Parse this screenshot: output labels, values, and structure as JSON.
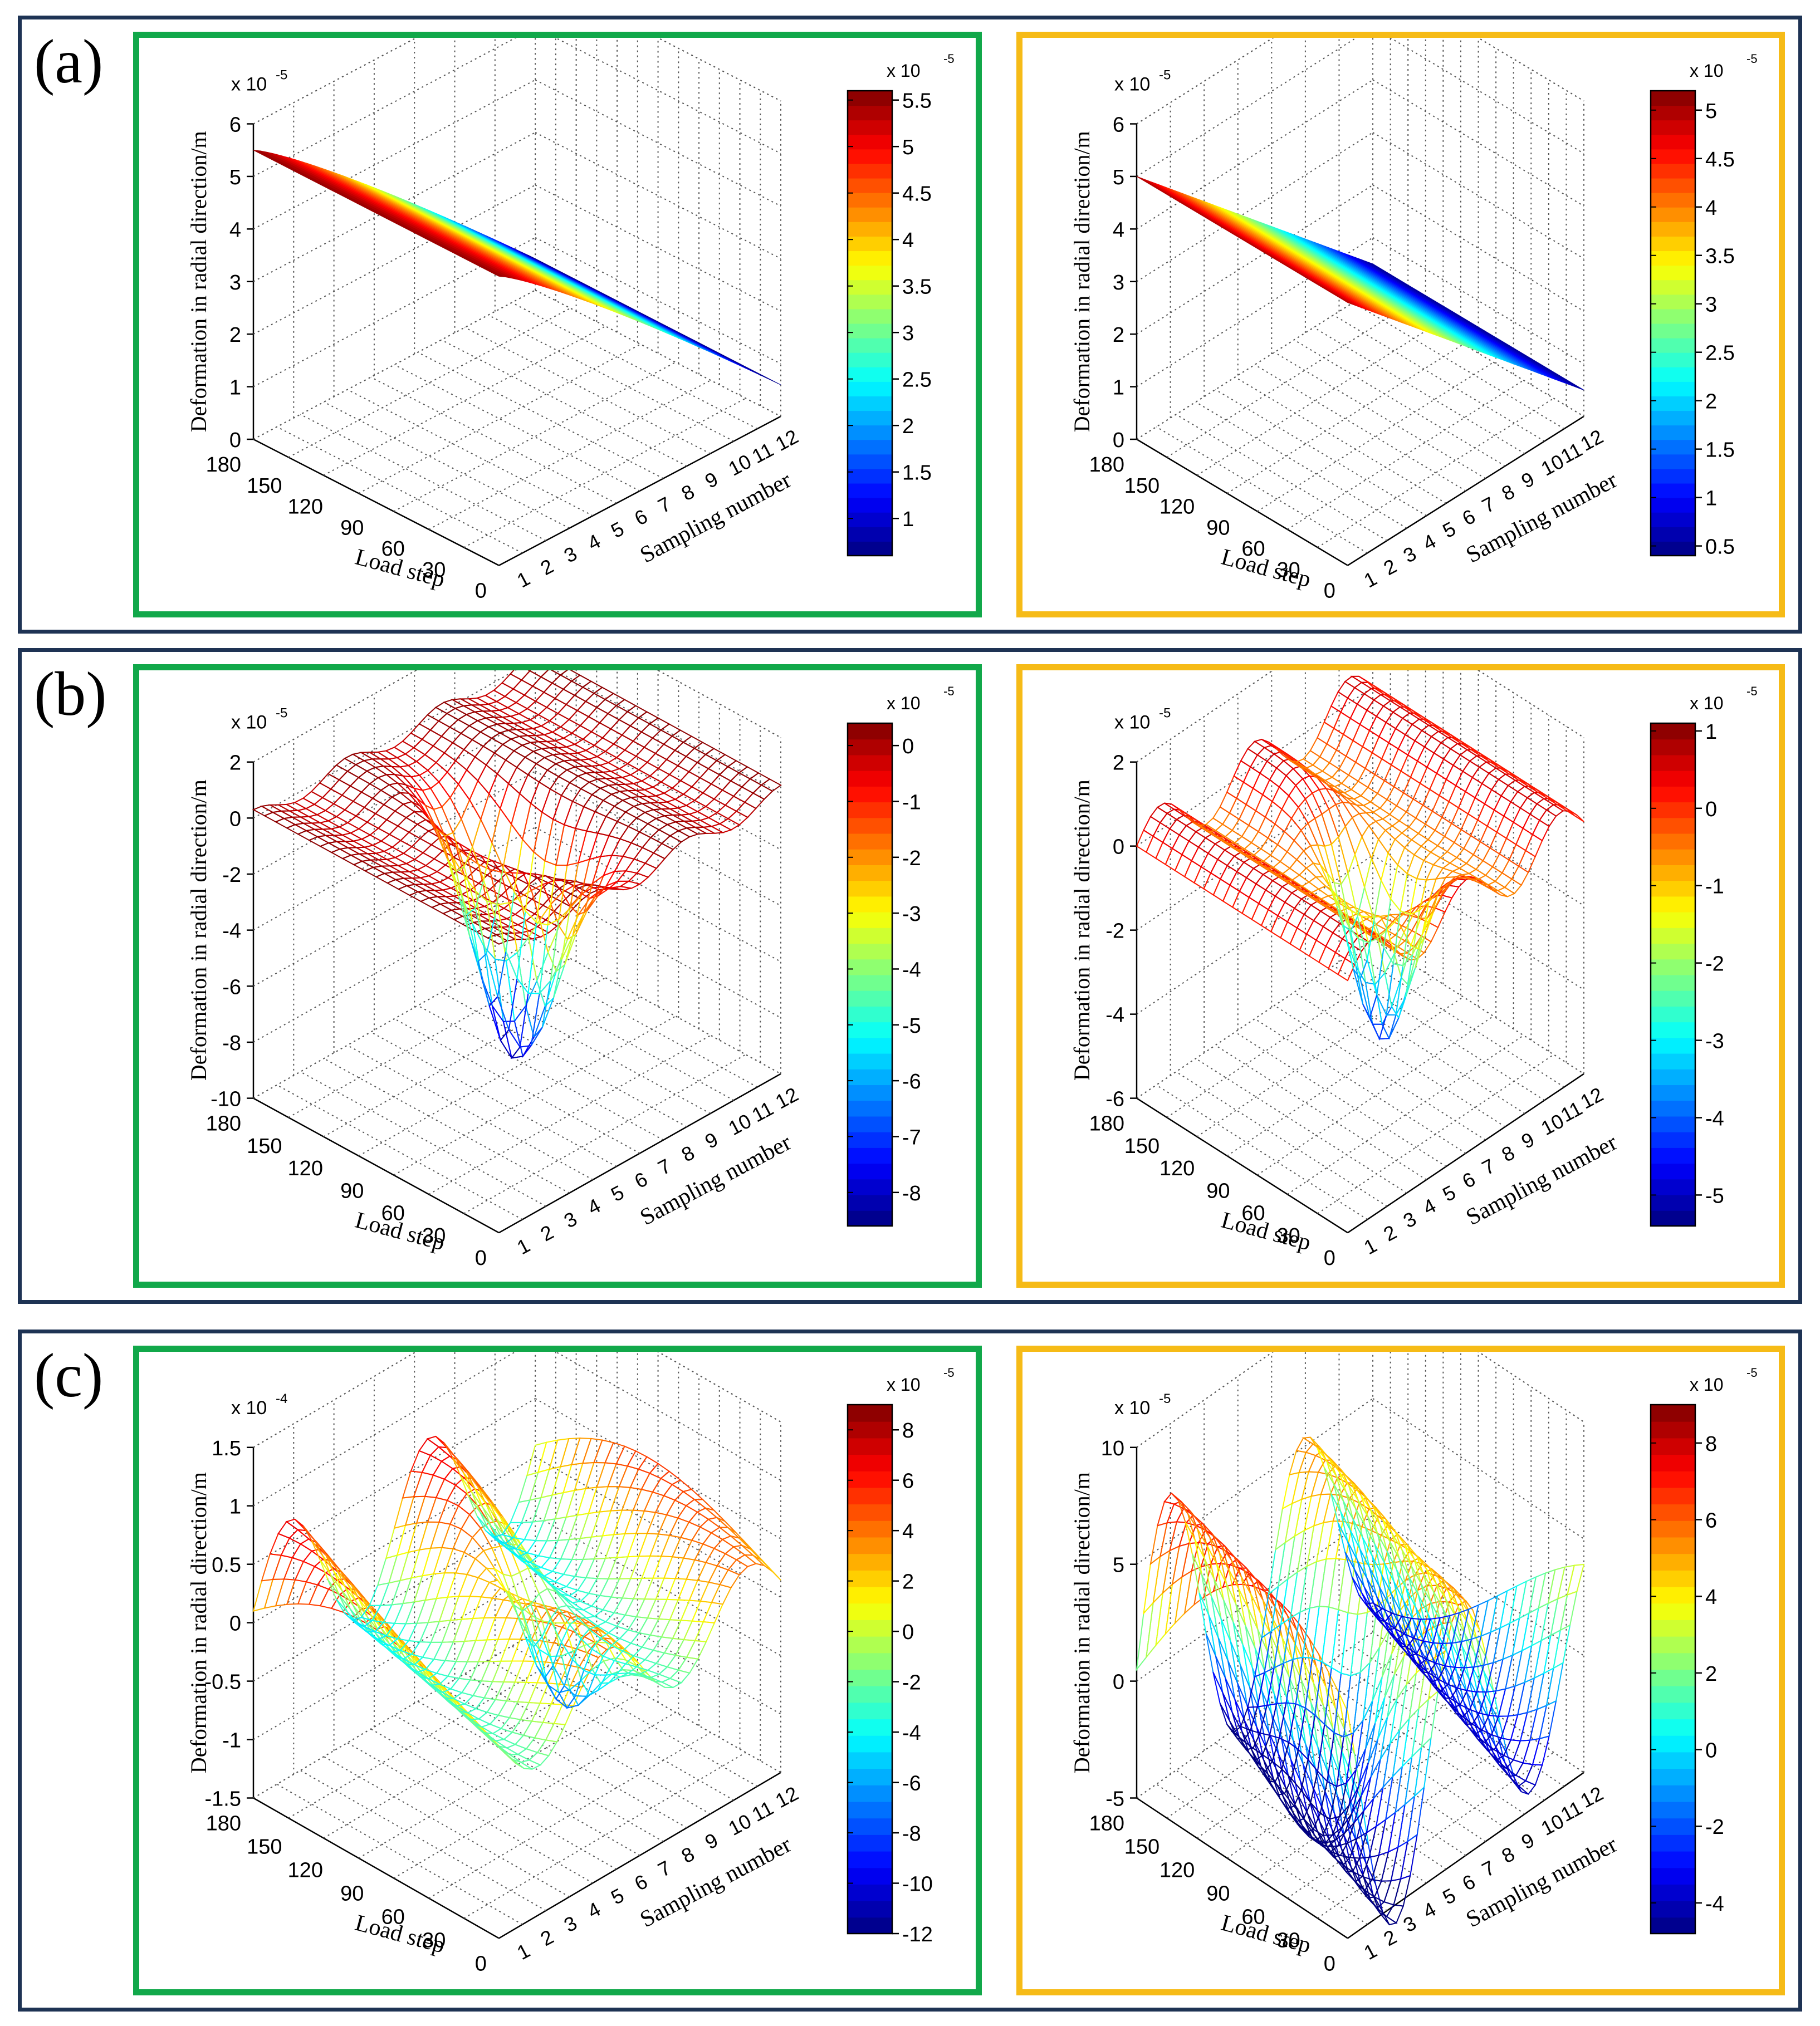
{
  "rows": [
    {
      "label": "(a)",
      "panels": [
        {
          "frame_color": "#11a84a",
          "zmin": 0,
          "zmax": 6,
          "zticks": [
            "0",
            "1",
            "2",
            "3",
            "4",
            "5",
            "6"
          ],
          "z_exponent": "x 10",
          "z_exponent_power": "-5",
          "colorbar": {
            "min": 0.6,
            "max": 5.6,
            "ticks": [
              "1",
              "1.5",
              "2",
              "2.5",
              "3",
              "3.5",
              "4",
              "4.5",
              "5",
              "5.5"
            ],
            "tick_values": [
              1,
              1.5,
              2,
              2.5,
              3,
              3.5,
              4,
              4.5,
              5,
              5.5
            ],
            "exponent": "x 10",
            "exponent_power": "-5"
          },
          "style": "surface",
          "surface_kind": "slopeA"
        },
        {
          "frame_color": "#f6bb17",
          "zmin": 0,
          "zmax": 6,
          "zticks": [
            "0",
            "1",
            "2",
            "3",
            "4",
            "5",
            "6"
          ],
          "z_exponent": "x 10",
          "z_exponent_power": "-5",
          "colorbar": {
            "min": 0.4,
            "max": 5.2,
            "ticks": [
              "0.5",
              "1",
              "1.5",
              "2",
              "2.5",
              "3",
              "3.5",
              "4",
              "4.5",
              "5"
            ],
            "tick_values": [
              0.5,
              1,
              1.5,
              2,
              2.5,
              3,
              3.5,
              4,
              4.5,
              5
            ],
            "exponent": "x 10",
            "exponent_power": "-5"
          },
          "style": "surface",
          "surface_kind": "slopeB"
        }
      ]
    },
    {
      "label": "(b)",
      "panels": [
        {
          "frame_color": "#11a84a",
          "zmin": -10,
          "zmax": 2,
          "zticks": [
            "-10",
            "-8",
            "-6",
            "-4",
            "-2",
            "0",
            "2"
          ],
          "z_exponent": "x 10",
          "z_exponent_power": "-5",
          "colorbar": {
            "min": -8.6,
            "max": 0.4,
            "ticks": [
              "-8",
              "-7",
              "-6",
              "-5",
              "-4",
              "-3",
              "-2",
              "-1",
              "0"
            ],
            "tick_values": [
              -8,
              -7,
              -6,
              -5,
              -4,
              -3,
              -2,
              -1,
              0
            ],
            "exponent": "x 10",
            "exponent_power": "-5"
          },
          "style": "mesh",
          "surface_kind": "dipB1"
        },
        {
          "frame_color": "#f6bb17",
          "zmin": -6,
          "zmax": 2,
          "zticks": [
            "-6",
            "-4",
            "-2",
            "0",
            "2"
          ],
          "z_exponent": "x 10",
          "z_exponent_power": "-5",
          "colorbar": {
            "min": -5.4,
            "max": 1.1,
            "ticks": [
              "-5",
              "-4",
              "-3",
              "-2",
              "-1",
              "0",
              "1"
            ],
            "tick_values": [
              -5,
              -4,
              -3,
              -2,
              -1,
              0,
              1
            ],
            "exponent": "x 10",
            "exponent_power": "-5"
          },
          "style": "mesh",
          "surface_kind": "dipB2"
        }
      ]
    },
    {
      "label": "(c)",
      "panels": [
        {
          "frame_color": "#11a84a",
          "zmin": -1.5,
          "zmax": 1.5,
          "zticks": [
            "-1.5",
            "-1",
            "-0.5",
            "0",
            "0.5",
            "1",
            "1.5"
          ],
          "z_exponent": "x 10",
          "z_exponent_power": "-4",
          "colorbar": {
            "min": -12,
            "max": 9,
            "ticks": [
              "-12",
              "-10",
              "-8",
              "-6",
              "-4",
              "-2",
              "0",
              "2",
              "4",
              "6",
              "8"
            ],
            "tick_values": [
              -12,
              -10,
              -8,
              -6,
              -4,
              -2,
              0,
              2,
              4,
              6,
              8
            ],
            "exponent": "x 10",
            "exponent_power": "-5"
          },
          "style": "mesh",
          "surface_kind": "waveC1"
        },
        {
          "frame_color": "#f6bb17",
          "zmin": -5,
          "zmax": 10,
          "zticks": [
            "-5",
            "0",
            "5",
            "10"
          ],
          "z_exponent": "x 10",
          "z_exponent_power": "-5",
          "colorbar": {
            "min": -4.8,
            "max": 9,
            "ticks": [
              "-4",
              "-2",
              "0",
              "2",
              "4",
              "6",
              "8"
            ],
            "tick_values": [
              -4,
              -2,
              0,
              2,
              4,
              6,
              8
            ],
            "exponent": "x 10",
            "exponent_power": "-5"
          },
          "style": "mesh",
          "surface_kind": "waveC2"
        }
      ]
    }
  ],
  "axes": {
    "zlabel": "Deformation in radial direction/m",
    "load_step_label": "Load step",
    "sampling_label": "Sampling number",
    "load_step_ticks": [
      "0",
      "30",
      "60",
      "90",
      "120",
      "150",
      "180"
    ],
    "sampling_ticks": [
      "1",
      "2",
      "3",
      "4",
      "5",
      "6",
      "7",
      "8",
      "9",
      "10",
      "11",
      "12"
    ]
  },
  "chart_data": [
    {
      "type": "surface",
      "title": "(a) left",
      "xlabel": "Load step",
      "ylabel": "Sampling number",
      "zlabel": "Deformation in radial direction/m",
      "x_range": [
        0,
        180
      ],
      "y_range": [
        1,
        12
      ],
      "z_range": [
        0,
        6
      ],
      "z_scale": "x 10^-5",
      "colorbar_range": [
        0.6,
        5.6
      ],
      "description_values": {
        "max_deformation": 5.5,
        "min_deformation": 0.6
      }
    },
    {
      "type": "surface",
      "title": "(a) right",
      "xlabel": "Load step",
      "ylabel": "Sampling number",
      "zlabel": "Deformation in radial direction/m",
      "x_range": [
        0,
        180
      ],
      "y_range": [
        1,
        12
      ],
      "z_range": [
        0,
        6
      ],
      "z_scale": "x 10^-5",
      "colorbar_range": [
        0.4,
        5.2
      ],
      "description_values": {
        "max_deformation": 5.0,
        "min_deformation": 0.5
      }
    },
    {
      "type": "surface",
      "title": "(b) left",
      "xlabel": "Load step",
      "ylabel": "Sampling number",
      "zlabel": "Deformation in radial direction/m",
      "x_range": [
        0,
        180
      ],
      "y_range": [
        1,
        12
      ],
      "z_range": [
        -10,
        2
      ],
      "z_scale": "x 10^-5",
      "colorbar_range": [
        -8.6,
        0.4
      ],
      "description_values": {
        "max_deformation": 0.3,
        "min_deformation": -8.4
      }
    },
    {
      "type": "surface",
      "title": "(b) right",
      "xlabel": "Load step",
      "ylabel": "Sampling number",
      "zlabel": "Deformation in radial direction/m",
      "x_range": [
        0,
        180
      ],
      "y_range": [
        1,
        12
      ],
      "z_range": [
        -6,
        2
      ],
      "z_scale": "x 10^-5",
      "colorbar_range": [
        -5.4,
        1.1
      ],
      "description_values": {
        "max_deformation": 1.0,
        "min_deformation": -5.2
      }
    },
    {
      "type": "surface",
      "title": "(c) left",
      "xlabel": "Load step",
      "ylabel": "Sampling number",
      "zlabel": "Deformation in radial direction/m",
      "x_range": [
        0,
        180
      ],
      "y_range": [
        1,
        12
      ],
      "z_range": [
        -1.5,
        1.5
      ],
      "z_scale": "x 10^-4",
      "colorbar_range": [
        -12,
        9
      ],
      "description_values": {
        "max_deformation": 8.8,
        "min_deformation": -11.5
      }
    },
    {
      "type": "surface",
      "title": "(c) right",
      "xlabel": "Load step",
      "ylabel": "Sampling number",
      "zlabel": "Deformation in radial direction/m",
      "x_range": [
        0,
        180
      ],
      "y_range": [
        1,
        12
      ],
      "z_range": [
        -5,
        10
      ],
      "z_scale": "x 10^-5",
      "colorbar_range": [
        -4.8,
        9
      ],
      "description_values": {
        "max_deformation": 8.8,
        "min_deformation": -4.5
      }
    }
  ]
}
